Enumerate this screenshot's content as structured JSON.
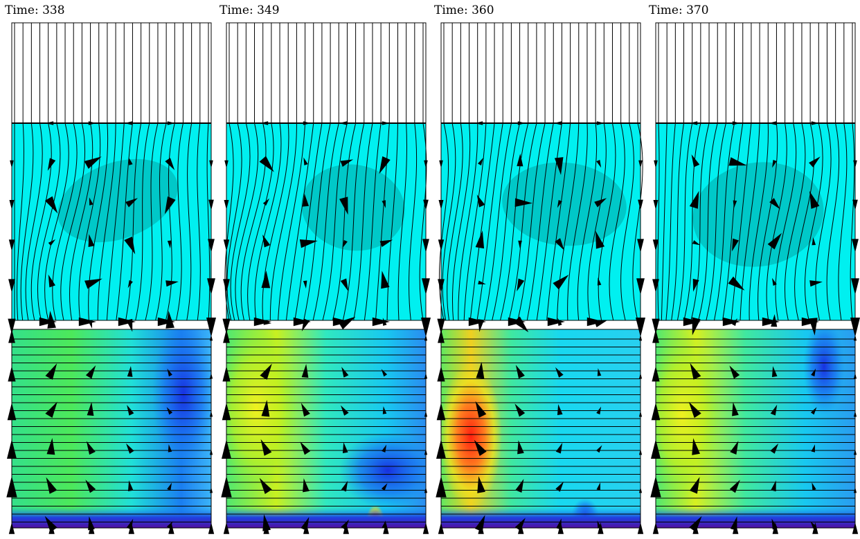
{
  "panels": [
    {
      "title": "Time: 338"
    },
    {
      "title": "Time: 349"
    },
    {
      "title": "Time: 360"
    },
    {
      "title": "Time: 370"
    }
  ]
}
